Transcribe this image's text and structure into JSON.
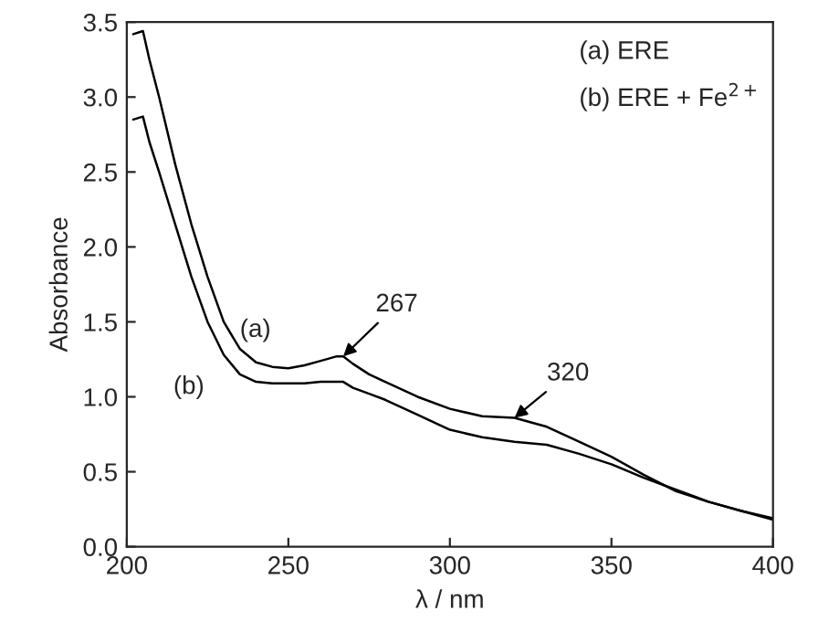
{
  "chart_data": {
    "type": "line",
    "xlabel": "λ / nm",
    "ylabel": "Absorbance",
    "xlim": [
      200,
      400
    ],
    "ylim": [
      0,
      3.5
    ],
    "xticks": [
      200,
      250,
      300,
      350,
      400
    ],
    "yticks": [
      {
        "value": 0,
        "label": "0.0"
      },
      {
        "value": 0.5,
        "label": "0.5"
      },
      {
        "value": 1,
        "label": "1.0"
      },
      {
        "value": 1.5,
        "label": "1.5"
      },
      {
        "value": 2,
        "label": "2.0"
      },
      {
        "value": 2.5,
        "label": "2.5"
      },
      {
        "value": 3,
        "label": "3.0"
      },
      {
        "value": 3.5,
        "label": "3.5"
      }
    ],
    "x": [
      202,
      205,
      207,
      210,
      215,
      220,
      225,
      230,
      235,
      240,
      245,
      250,
      255,
      260,
      265,
      267,
      270,
      275,
      280,
      290,
      300,
      310,
      320,
      330,
      340,
      350,
      360,
      370,
      380,
      390,
      400
    ],
    "series": [
      {
        "color": "#000000",
        "values": [
          3.42,
          3.44,
          3.25,
          3.0,
          2.55,
          2.15,
          1.8,
          1.5,
          1.32,
          1.23,
          1.2,
          1.19,
          1.21,
          1.24,
          1.27,
          1.27,
          1.22,
          1.15,
          1.1,
          1.0,
          0.92,
          0.87,
          0.86,
          0.8,
          0.7,
          0.6,
          0.48,
          0.37,
          0.3,
          0.24,
          0.19
        ]
      },
      {
        "color": "#000000",
        "values": [
          2.85,
          2.87,
          2.7,
          2.5,
          2.15,
          1.8,
          1.5,
          1.28,
          1.15,
          1.1,
          1.09,
          1.09,
          1.09,
          1.1,
          1.1,
          1.1,
          1.06,
          1.02,
          0.98,
          0.88,
          0.78,
          0.73,
          0.7,
          0.68,
          0.62,
          0.55,
          0.46,
          0.38,
          0.3,
          0.24,
          0.18
        ]
      }
    ],
    "annotations": [
      {
        "text": "267",
        "x": 267,
        "y": 1.27
      },
      {
        "text": "320",
        "x": 320,
        "y": 0.86
      },
      {
        "text": "(a)",
        "x": 235,
        "y": 1.32
      },
      {
        "text": "(b)",
        "x": 225,
        "y": 1.5
      },
      "(a) ERE",
      "(b) ERE + Fe$^{2+}$"
    ],
    "grid": false,
    "legend": false,
    "marker": "none",
    "line_style": "solid"
  }
}
